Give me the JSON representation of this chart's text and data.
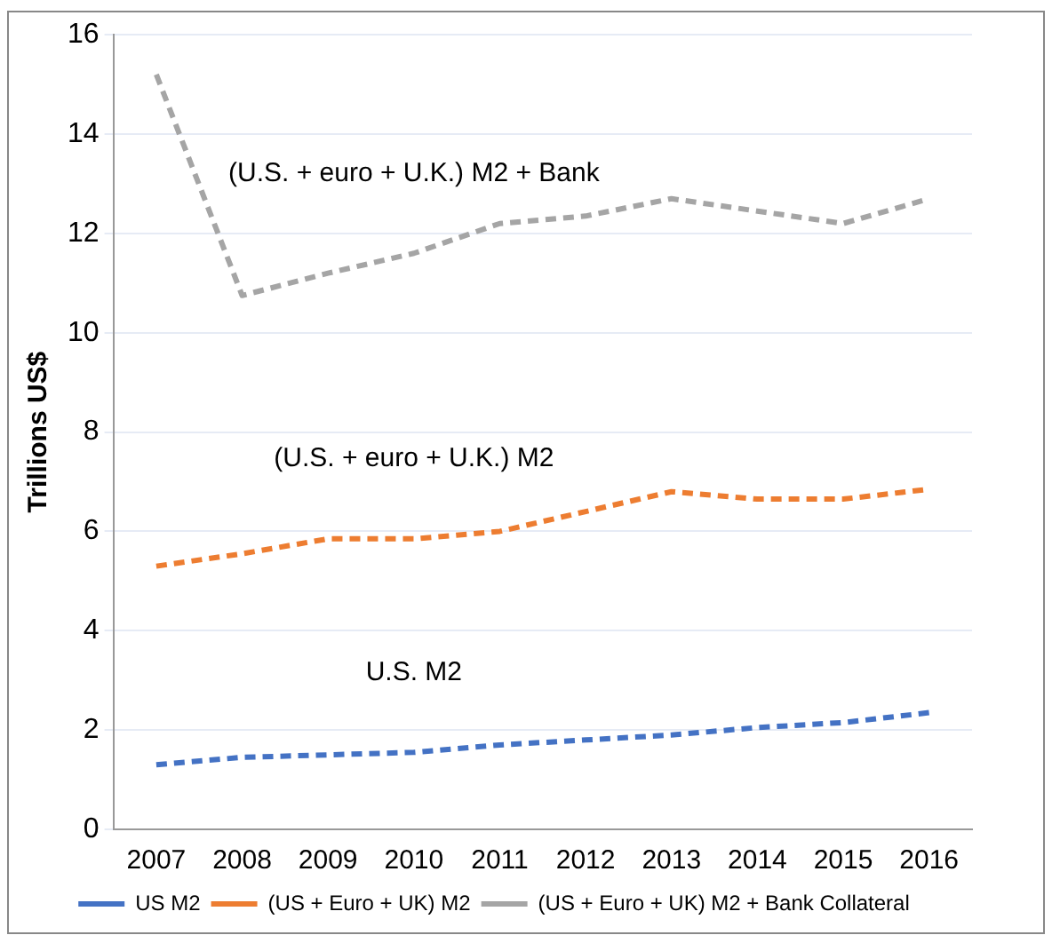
{
  "chart_data": {
    "type": "line",
    "ylabel": "Trillions US$",
    "categories": [
      "2007",
      "2008",
      "2009",
      "2010",
      "2011",
      "2012",
      "2013",
      "2014",
      "2015",
      "2016"
    ],
    "series": [
      {
        "name": "US M2",
        "color": "#4472c4",
        "values": [
          1.3,
          1.45,
          1.5,
          1.55,
          1.7,
          1.8,
          1.9,
          2.05,
          2.15,
          2.35
        ]
      },
      {
        "name": "(US + Euro + UK) M2",
        "color": "#ed7d31",
        "values": [
          5.3,
          5.55,
          5.85,
          5.85,
          6.0,
          6.4,
          6.8,
          6.65,
          6.65,
          6.85
        ]
      },
      {
        "name": "(US + Euro + UK) M2 + Bank Collateral",
        "color": "#a5a5a5",
        "values": [
          15.2,
          10.75,
          11.2,
          11.6,
          12.2,
          12.35,
          12.7,
          12.45,
          12.2,
          12.7
        ]
      }
    ],
    "annotations": [
      "(U.S. + euro + U.K.) M2 + Bank",
      "(U.S. + euro + U.K.) M2",
      "U.S. M2"
    ],
    "ylim": [
      0,
      16
    ],
    "yticks": [
      0,
      2,
      4,
      6,
      8,
      10,
      12,
      14,
      16
    ],
    "grid": "y",
    "legend": "bottom",
    "line_style": "dashed",
    "marker": "none"
  }
}
